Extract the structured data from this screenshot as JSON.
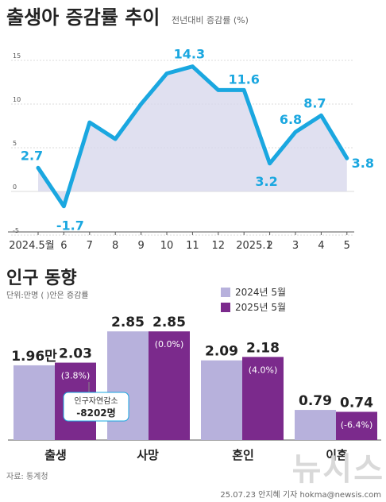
{
  "header": {
    "title": "출생아 증감률 추이",
    "subtitle": "전년대비 증감률 (%)"
  },
  "chart_data": [
    {
      "type": "area",
      "title": "출생아 증감률 추이",
      "subtitle": "전년대비 증감률 (%)",
      "x": [
        "2024.5월",
        "6",
        "7",
        "8",
        "9",
        "10",
        "11",
        "12",
        "2025.1",
        "2",
        "3",
        "4",
        "5"
      ],
      "values": [
        2.7,
        -1.7,
        7.9,
        6.0,
        10.0,
        13.5,
        14.3,
        11.6,
        11.6,
        3.2,
        6.8,
        8.7,
        3.8
      ],
      "labels": [
        {
          "index": 0,
          "text": "2.7"
        },
        {
          "index": 1,
          "text": "-1.7"
        },
        {
          "index": 6,
          "text": "14.3"
        },
        {
          "index": 8,
          "text": "11.6"
        },
        {
          "index": 9,
          "text": "3.2"
        },
        {
          "index": 10,
          "text": "6.8"
        },
        {
          "index": 11,
          "text": "8.7"
        },
        {
          "index": 12,
          "text": "3.8"
        }
      ],
      "yticks": [
        15,
        10,
        5,
        0,
        -5
      ],
      "ylim": [
        -5,
        16
      ],
      "colors": {
        "line": "#1aa7e0",
        "fill": "#d8d8ec"
      }
    },
    {
      "type": "bar",
      "title": "인구 동향",
      "unit_note": "단위:만명 ( )안은  증감률",
      "categories": [
        "출생",
        "사망",
        "혼인",
        "이혼"
      ],
      "series": [
        {
          "name": "2024년 5월",
          "values": [
            1.96,
            2.85,
            2.09,
            0.79
          ],
          "labels": [
            "1.96만",
            "2.85",
            "2.09",
            "0.79"
          ],
          "color": "#b7b1dc"
        },
        {
          "name": "2025년 5월",
          "values": [
            2.03,
            2.85,
            2.18,
            0.74
          ],
          "labels": [
            "2.03",
            "2.85",
            "2.18",
            "0.74"
          ],
          "pct": [
            "(3.8%)",
            "(0.0%)",
            "(4.0%)",
            "(-6.4%)"
          ],
          "color": "#7b2a8c"
        }
      ],
      "callout": {
        "title": "인구자연감소",
        "value": "-8202명"
      }
    }
  ],
  "footer": {
    "source": "자료: 통계청",
    "watermark": "뉴시스",
    "credit": "25.07.23 안지혜 기자 hokma@newsis.com"
  }
}
